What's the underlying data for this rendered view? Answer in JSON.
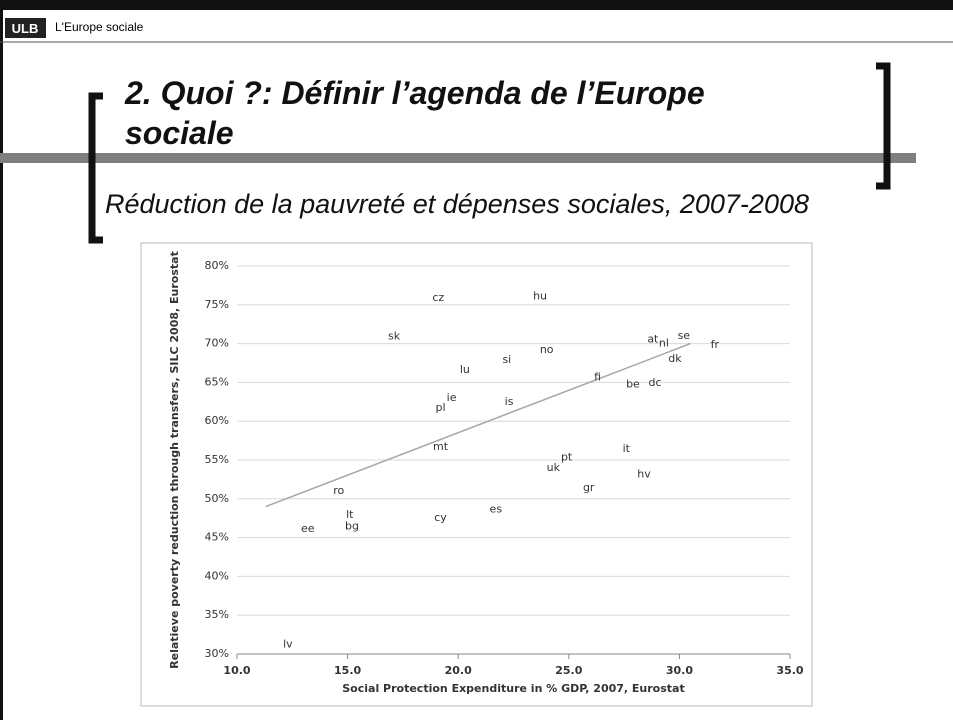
{
  "header": {
    "logo": "ULB",
    "title": "L'Europe sociale"
  },
  "slide": {
    "title_line1": "2. Quoi ?: Définir l’agenda de l’Europe",
    "title_line2": "sociale",
    "subtitle": "Réduction de la pauvreté et dépenses sociales, 2007-2008"
  },
  "chart_data": {
    "type": "scatter",
    "x_label": "Social Protection Expenditure in % GDP, 2007, Eurostat",
    "y_label": "Relatieve poverty reduction through transfers, SILC 2008, Eurostat",
    "xlim": [
      10,
      35
    ],
    "ylim": [
      30,
      80
    ],
    "xticks": [
      {
        "value": 10,
        "label": "10.0"
      },
      {
        "value": 15,
        "label": "15.0"
      },
      {
        "value": 20,
        "label": "20.0"
      },
      {
        "value": 25,
        "label": "25.0"
      },
      {
        "value": 30,
        "label": "30.0"
      },
      {
        "value": 35,
        "label": "35.0"
      }
    ],
    "yticks": [
      {
        "value": 30,
        "label": "30%"
      },
      {
        "value": 35,
        "label": "35%"
      },
      {
        "value": 40,
        "label": "40%"
      },
      {
        "value": 45,
        "label": "45%"
      },
      {
        "value": 50,
        "label": "50%"
      },
      {
        "value": 55,
        "label": "55%"
      },
      {
        "value": 60,
        "label": "60%"
      },
      {
        "value": 65,
        "label": "65%"
      },
      {
        "value": 70,
        "label": "70%"
      },
      {
        "value": 75,
        "label": "75%"
      },
      {
        "value": 80,
        "label": "80%"
      }
    ],
    "grid": true,
    "color": "#333333",
    "trend_color": "#a6a6a6",
    "points": [
      {
        "label": "lv",
        "x": 12.3,
        "y": 31.2
      },
      {
        "label": "ee",
        "x": 13.2,
        "y": 46.1
      },
      {
        "label": "bg",
        "x": 15.2,
        "y": 46.4
      },
      {
        "label": "lt",
        "x": 15.1,
        "y": 47.9
      },
      {
        "label": "ro",
        "x": 14.6,
        "y": 51
      },
      {
        "label": "cy",
        "x": 19.2,
        "y": 47.5
      },
      {
        "label": "es",
        "x": 21.7,
        "y": 48.6
      },
      {
        "label": "mt",
        "x": 19.2,
        "y": 56.7
      },
      {
        "label": "pl",
        "x": 19.2,
        "y": 61.7
      },
      {
        "label": "ie",
        "x": 19.7,
        "y": 63
      },
      {
        "label": "lu",
        "x": 20.3,
        "y": 66.6
      },
      {
        "label": "is",
        "x": 22.3,
        "y": 62.5
      },
      {
        "label": "si",
        "x": 22.2,
        "y": 67.9
      },
      {
        "label": "no",
        "x": 24,
        "y": 69.2
      },
      {
        "label": "hu",
        "x": 23.7,
        "y": 76.1
      },
      {
        "label": "cz",
        "x": 19.1,
        "y": 75.9
      },
      {
        "label": "sk",
        "x": 17.1,
        "y": 70.9
      },
      {
        "label": "uk",
        "x": 24.3,
        "y": 54
      },
      {
        "label": "pt",
        "x": 24.9,
        "y": 55.3
      },
      {
        "label": "gr",
        "x": 25.9,
        "y": 51.4
      },
      {
        "label": "fi",
        "x": 26.3,
        "y": 65.6
      },
      {
        "label": "it",
        "x": 27.6,
        "y": 56.4
      },
      {
        "label": "hv",
        "x": 28.4,
        "y": 53.1
      },
      {
        "label": "be",
        "x": 27.9,
        "y": 64.7
      },
      {
        "label": "dc",
        "x": 28.9,
        "y": 64.9
      },
      {
        "label": "at",
        "x": 28.8,
        "y": 70.5
      },
      {
        "label": "nl",
        "x": 29.3,
        "y": 70
      },
      {
        "label": "se",
        "x": 30.2,
        "y": 71
      },
      {
        "label": "dk",
        "x": 29.8,
        "y": 68
      },
      {
        "label": "fr",
        "x": 31.6,
        "y": 69.8
      }
    ],
    "trendline": {
      "x": [
        11.3,
        30.5
      ],
      "y": [
        49,
        70
      ]
    }
  }
}
